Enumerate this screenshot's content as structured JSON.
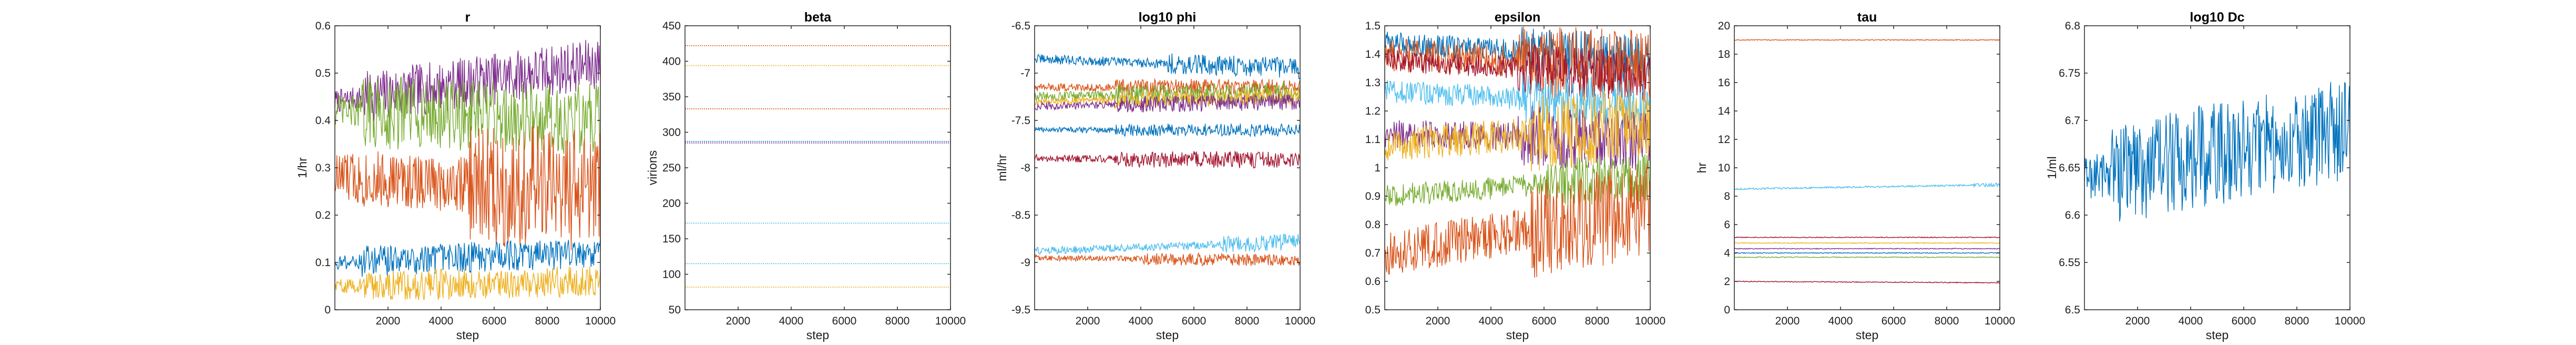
{
  "figure": {
    "xlabel": "step"
  },
  "chart_data": [
    {
      "type": "line",
      "title": "r",
      "xlabel": "step",
      "ylabel": "1/hr",
      "xlim": [
        0,
        10000
      ],
      "ylim": [
        0,
        0.6
      ],
      "xticks": [
        2000,
        4000,
        6000,
        8000,
        10000
      ],
      "yticks": [
        0,
        0.1,
        0.2,
        0.3,
        0.4,
        0.5,
        0.6
      ],
      "grid": false,
      "series": [
        {
          "color": "#7E2F8E",
          "start": 0.44,
          "end": 0.52,
          "noise": 0.025,
          "onset": 0.1
        },
        {
          "color": "#77AC30",
          "start": 0.42,
          "end": 0.4,
          "noise": 0.035,
          "onset": 0.1
        },
        {
          "color": "#D95319",
          "start": 0.28,
          "end": 0.25,
          "noise": 0.06,
          "onset": 0.5
        },
        {
          "color": "#0072BD",
          "start": 0.1,
          "end": 0.12,
          "noise": 0.015,
          "onset": 0.1
        },
        {
          "color": "#EDB120",
          "start": 0.05,
          "end": 0.06,
          "noise": 0.015,
          "onset": 0.1
        }
      ]
    },
    {
      "type": "line",
      "title": "beta",
      "xlabel": "step",
      "ylabel": "virions",
      "xlim": [
        0,
        10000
      ],
      "ylim": [
        50,
        450
      ],
      "xticks": [
        2000,
        4000,
        6000,
        8000,
        10000
      ],
      "yticks": [
        50,
        100,
        150,
        200,
        250,
        300,
        350,
        400,
        450
      ],
      "grid": false,
      "series": [
        {
          "color": "#D95319",
          "start": 422,
          "end": 422,
          "noise": 0,
          "onset": 1
        },
        {
          "color": "#EDB120",
          "start": 394,
          "end": 394,
          "noise": 0,
          "onset": 1
        },
        {
          "color": "#D95319",
          "start": 333,
          "end": 333,
          "noise": 0,
          "onset": 1
        },
        {
          "color": "#0072BD",
          "start": 287,
          "end": 287,
          "noise": 0,
          "onset": 1
        },
        {
          "color": "#7E2F8E",
          "start": 285,
          "end": 285,
          "noise": 0,
          "onset": 1
        },
        {
          "color": "#4DBEEE",
          "start": 172,
          "end": 172,
          "noise": 0,
          "onset": 1
        },
        {
          "color": "#4DBEEE",
          "start": 115,
          "end": 115,
          "noise": 0,
          "onset": 1
        },
        {
          "color": "#EDB120",
          "start": 82,
          "end": 82,
          "noise": 0,
          "onset": 1
        }
      ]
    },
    {
      "type": "line",
      "title": "log10 phi",
      "xlabel": "step",
      "ylabel": "ml/hr",
      "xlim": [
        0,
        10000
      ],
      "ylim": [
        -9.5,
        -6.5
      ],
      "xticks": [
        2000,
        4000,
        6000,
        8000,
        10000
      ],
      "yticks": [
        -6.5,
        -7,
        -7.5,
        -8,
        -8.5,
        -9,
        -9.5
      ],
      "grid": false,
      "series": [
        {
          "color": "#0072BD",
          "start": -6.85,
          "end": -6.95,
          "noise": 0.05,
          "onset": 0.5
        },
        {
          "color": "#D95319",
          "start": -7.15,
          "end": -7.15,
          "noise": 0.04,
          "onset": 0.3
        },
        {
          "color": "#77AC30",
          "start": -7.25,
          "end": -7.2,
          "noise": 0.05,
          "onset": 0.3
        },
        {
          "color": "#EDB120",
          "start": -7.3,
          "end": -7.25,
          "noise": 0.04,
          "onset": 0.3
        },
        {
          "color": "#7E2F8E",
          "start": -7.35,
          "end": -7.3,
          "noise": 0.04,
          "onset": 0.3
        },
        {
          "color": "#0072BD",
          "start": -7.6,
          "end": -7.6,
          "noise": 0.03,
          "onset": 0.3
        },
        {
          "color": "#A2142F",
          "start": -7.9,
          "end": -7.92,
          "noise": 0.04,
          "onset": 0.3
        },
        {
          "color": "#4DBEEE",
          "start": -8.88,
          "end": -8.78,
          "noise": 0.04,
          "onset": 0.7
        },
        {
          "color": "#D95319",
          "start": -8.95,
          "end": -8.98,
          "noise": 0.03,
          "onset": 0.4
        }
      ]
    },
    {
      "type": "line",
      "title": "epsilon",
      "xlabel": "step",
      "ylabel": "",
      "xlim": [
        0,
        10000
      ],
      "ylim": [
        0.5,
        1.5
      ],
      "xticks": [
        2000,
        4000,
        6000,
        8000,
        10000
      ],
      "yticks": [
        0.5,
        0.6,
        0.7,
        0.8,
        0.9,
        1,
        1.1,
        1.2,
        1.3,
        1.4,
        1.5
      ],
      "grid": false,
      "series": [
        {
          "color": "#0072BD",
          "start": 1.44,
          "end": 1.38,
          "noise": 0.04,
          "onset": 0.5
        },
        {
          "color": "#D95319",
          "start": 1.4,
          "end": 1.35,
          "noise": 0.06,
          "onset": 0.5
        },
        {
          "color": "#A2142F",
          "start": 1.38,
          "end": 1.32,
          "noise": 0.04,
          "onset": 0.5
        },
        {
          "color": "#4DBEEE",
          "start": 1.27,
          "end": 1.22,
          "noise": 0.04,
          "onset": 0.5
        },
        {
          "color": "#7E2F8E",
          "start": 1.12,
          "end": 1.1,
          "noise": 0.05,
          "onset": 0.5
        },
        {
          "color": "#EDB120",
          "start": 1.08,
          "end": 1.15,
          "noise": 0.06,
          "onset": 0.55
        },
        {
          "color": "#77AC30",
          "start": 0.9,
          "end": 0.97,
          "noise": 0.04,
          "onset": 0.6
        },
        {
          "color": "#D95319",
          "start": 0.7,
          "end": 0.85,
          "noise": 0.08,
          "onset": 0.55
        }
      ]
    },
    {
      "type": "line",
      "title": "tau",
      "xlabel": "step",
      "ylabel": "hr",
      "xlim": [
        0,
        10000
      ],
      "ylim": [
        0,
        20
      ],
      "xticks": [
        2000,
        4000,
        6000,
        8000,
        10000
      ],
      "yticks": [
        0,
        2,
        4,
        6,
        8,
        10,
        12,
        14,
        16,
        18,
        20
      ],
      "grid": false,
      "series": [
        {
          "color": "#D95319",
          "start": 19,
          "end": 19,
          "noise": 0.03,
          "onset": 1
        },
        {
          "color": "#4DBEEE",
          "start": 8.5,
          "end": 8.8,
          "noise": 0.06,
          "onset": 0.9
        },
        {
          "color": "#A2142F",
          "start": 5.1,
          "end": 5.1,
          "noise": 0.03,
          "onset": 1
        },
        {
          "color": "#EDB120",
          "start": 4.7,
          "end": 4.7,
          "noise": 0.03,
          "onset": 1
        },
        {
          "color": "#7E2F8E",
          "start": 4.3,
          "end": 4.3,
          "noise": 0.03,
          "onset": 1
        },
        {
          "color": "#0072BD",
          "start": 4.0,
          "end": 4.0,
          "noise": 0.03,
          "onset": 1
        },
        {
          "color": "#77AC30",
          "start": 3.7,
          "end": 3.7,
          "noise": 0.03,
          "onset": 1
        },
        {
          "color": "#A2142F",
          "start": 2.0,
          "end": 1.9,
          "noise": 0.03,
          "onset": 1
        }
      ]
    },
    {
      "type": "line",
      "title": "log10 Dc",
      "xlabel": "step",
      "ylabel": "1/ml",
      "xlim": [
        0,
        10000
      ],
      "ylim": [
        6.5,
        6.8
      ],
      "xticks": [
        2000,
        4000,
        6000,
        8000,
        10000
      ],
      "yticks": [
        6.5,
        6.55,
        6.6,
        6.65,
        6.7,
        6.75,
        6.8
      ],
      "grid": false,
      "series": [
        {
          "color": "#0072BD",
          "start": 6.64,
          "end": 6.69,
          "noise": 0.025,
          "onset": 0.1
        }
      ]
    }
  ]
}
